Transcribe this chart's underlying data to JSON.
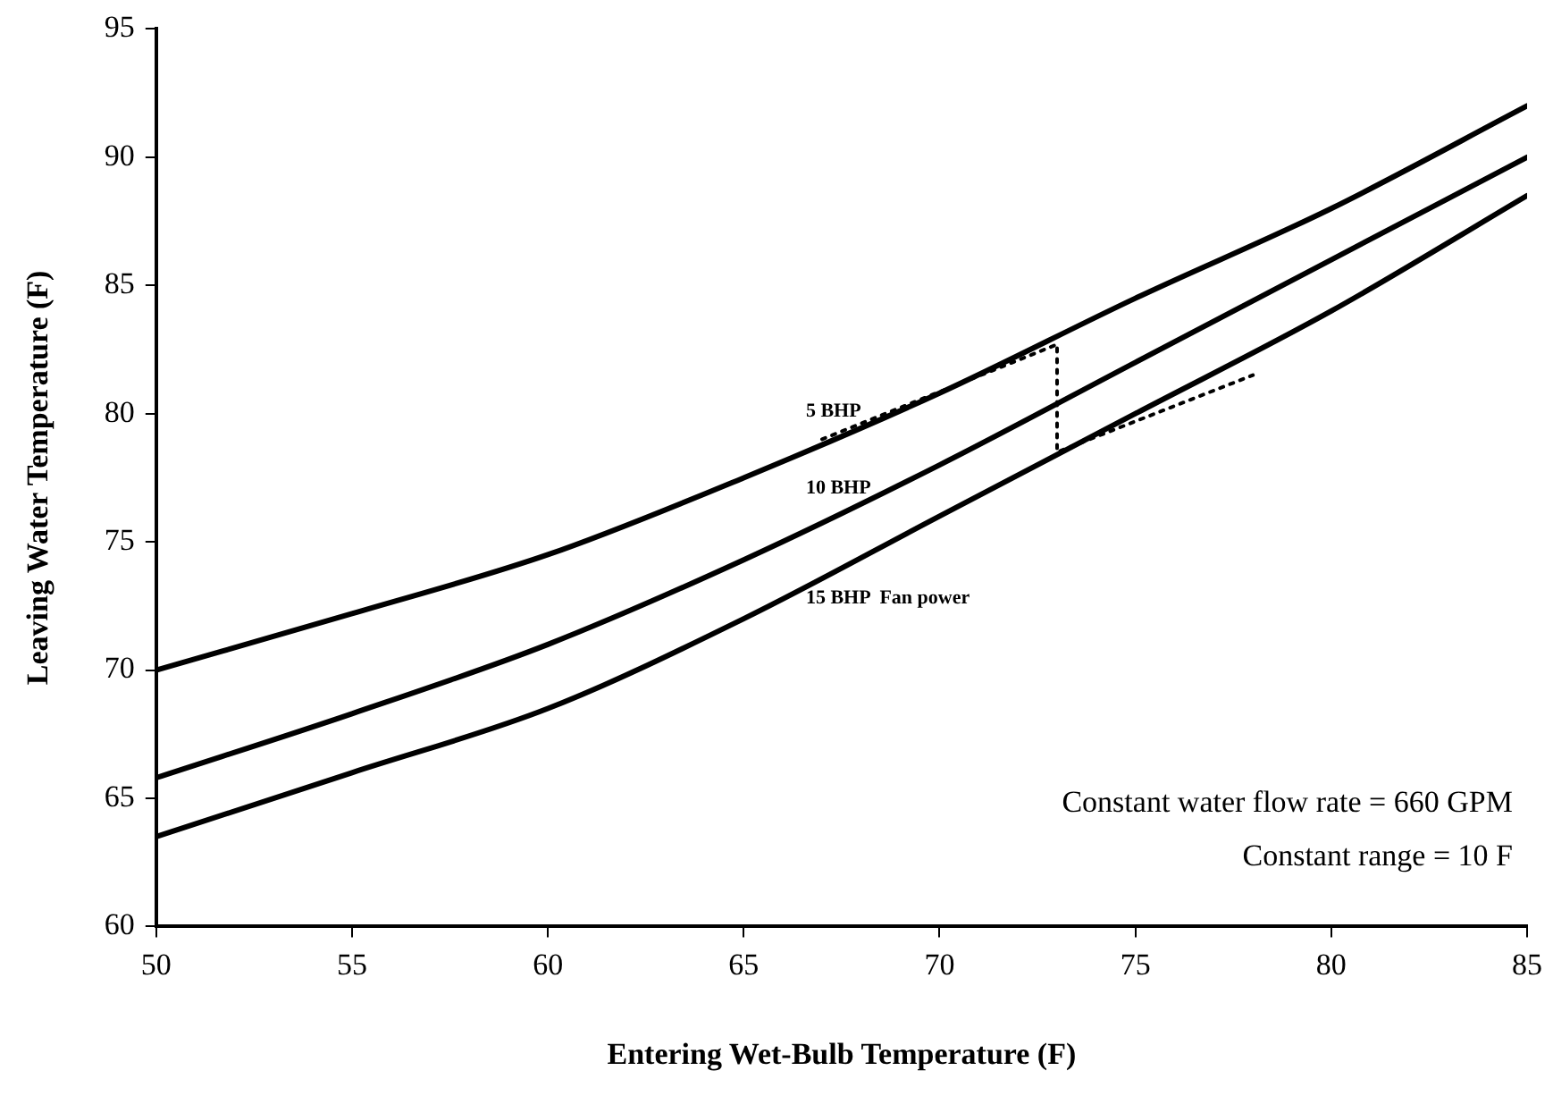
{
  "chart_data": {
    "type": "line",
    "xlabel": "Entering Wet-Bulb Temperature (F)",
    "ylabel": "Leaving Water Temperature (F)",
    "xlim": [
      50,
      85
    ],
    "xticks": [
      50,
      55,
      60,
      65,
      70,
      75,
      80,
      85
    ],
    "ylim": [
      60,
      95
    ],
    "yticks": [
      60,
      65,
      70,
      75,
      80,
      85,
      90,
      95
    ],
    "grid": false,
    "legend": false,
    "marker": "none",
    "series": [
      {
        "name": "5 BHP",
        "color": "#000000",
        "x": [
          50,
          55,
          60,
          65,
          70,
          75,
          80,
          85
        ],
        "values": [
          70,
          72.2,
          74.5,
          77.5,
          80.8,
          84.5,
          88,
          92
        ]
      },
      {
        "name": "10 BHP",
        "color": "#000000",
        "x": [
          50,
          55,
          60,
          65,
          70,
          75,
          80,
          85
        ],
        "values": [
          65.8,
          68.3,
          71,
          74.3,
          78,
          82,
          86,
          90
        ]
      },
      {
        "name": "15 BHP  Fan power",
        "color": "#000000",
        "x": [
          50,
          55,
          60,
          65,
          70,
          75,
          80,
          85
        ],
        "values": [
          63.5,
          66,
          68.5,
          72,
          76,
          80,
          84,
          88.5
        ]
      },
      {
        "color": "#000000",
        "line_style": "dotted",
        "x": [
          67,
          73,
          73,
          78
        ],
        "values": [
          79,
          82.7,
          78.5,
          81.5
        ]
      }
    ],
    "annotations": [
      "Constant water flow rate = 660 GPM",
      "Constant range = 10 F"
    ]
  }
}
